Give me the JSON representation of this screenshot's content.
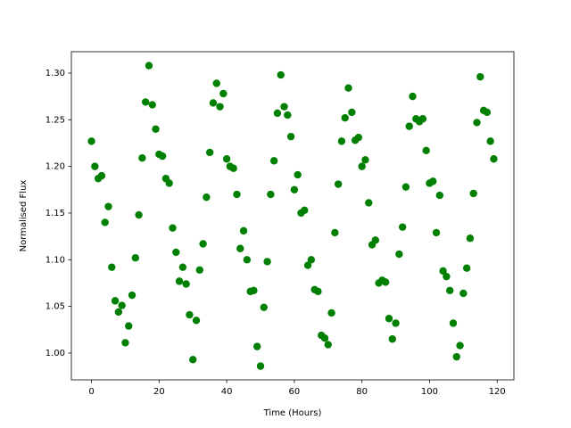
{
  "chart_data": {
    "type": "scatter",
    "xlabel": "Time (Hours)",
    "ylabel": "Normalised Flux",
    "color": "#008000",
    "x": [
      0,
      1,
      2,
      3,
      4,
      5,
      6,
      7,
      8,
      9,
      10,
      11,
      12,
      13,
      14,
      15,
      16,
      17,
      18,
      19,
      20,
      21,
      22,
      23,
      24,
      25,
      26,
      27,
      28,
      29,
      30,
      31,
      32,
      33,
      34,
      35,
      36,
      37,
      38,
      39,
      40,
      41,
      42,
      43,
      44,
      45,
      46,
      47,
      48,
      49,
      50,
      51,
      52,
      53,
      54,
      55,
      56,
      57,
      58,
      59,
      60,
      61,
      62,
      63,
      64,
      65,
      66,
      67,
      68,
      69,
      70,
      71,
      72,
      73,
      74,
      75,
      76,
      77,
      78,
      79,
      80,
      81,
      82,
      83,
      84,
      85,
      86,
      87,
      88,
      89,
      90,
      91,
      92,
      93,
      94,
      95,
      96,
      97,
      98,
      99,
      100,
      101,
      102,
      103,
      104,
      105,
      106,
      107,
      108,
      109,
      110,
      111,
      112,
      113,
      114,
      115,
      116,
      117,
      118,
      119
    ],
    "values": [
      1.227,
      1.2,
      1.187,
      1.19,
      1.14,
      1.157,
      1.092,
      1.056,
      1.044,
      1.051,
      1.011,
      1.029,
      1.062,
      1.102,
      1.148,
      1.209,
      1.269,
      1.308,
      1.266,
      1.24,
      1.213,
      1.211,
      1.187,
      1.182,
      1.134,
      1.108,
      1.077,
      1.092,
      1.074,
      1.041,
      0.993,
      1.035,
      1.089,
      1.117,
      1.167,
      1.215,
      1.268,
      1.289,
      1.264,
      1.278,
      1.208,
      1.2,
      1.198,
      1.17,
      1.112,
      1.131,
      1.1,
      1.066,
      1.067,
      1.007,
      0.986,
      1.049,
      1.098,
      1.17,
      1.206,
      1.257,
      1.298,
      1.264,
      1.255,
      1.232,
      1.175,
      1.191,
      1.15,
      1.153,
      1.094,
      1.1,
      1.068,
      1.066,
      1.019,
      1.016,
      1.009,
      1.043,
      1.129,
      1.181,
      1.227,
      1.252,
      1.284,
      1.258,
      1.228,
      1.231,
      1.2,
      1.207,
      1.161,
      1.116,
      1.121,
      1.075,
      1.078,
      1.076,
      1.037,
      1.015,
      1.032,
      1.106,
      1.135,
      1.178,
      1.243,
      1.275,
      1.251,
      1.248,
      1.251,
      1.217,
      1.182,
      1.184,
      1.129,
      1.169,
      1.088,
      1.082,
      1.067,
      1.032,
      0.996,
      1.008,
      1.064,
      1.091,
      1.123,
      1.171,
      1.247,
      1.296,
      1.26,
      1.258,
      1.227,
      1.208
    ],
    "xlim": [
      -5.95,
      124.95
    ],
    "ylim": [
      0.9713,
      1.3229
    ],
    "xticks": [
      0,
      20,
      40,
      60,
      80,
      100,
      120
    ],
    "yticks": [
      {
        "value": 1.0,
        "label": "1.00"
      },
      {
        "value": 1.05,
        "label": "1.05"
      },
      {
        "value": 1.1,
        "label": "1.10"
      },
      {
        "value": 1.15,
        "label": "1.15"
      },
      {
        "value": 1.2,
        "label": "1.20"
      },
      {
        "value": 1.25,
        "label": "1.25"
      },
      {
        "value": 1.3,
        "label": "1.30"
      }
    ]
  }
}
